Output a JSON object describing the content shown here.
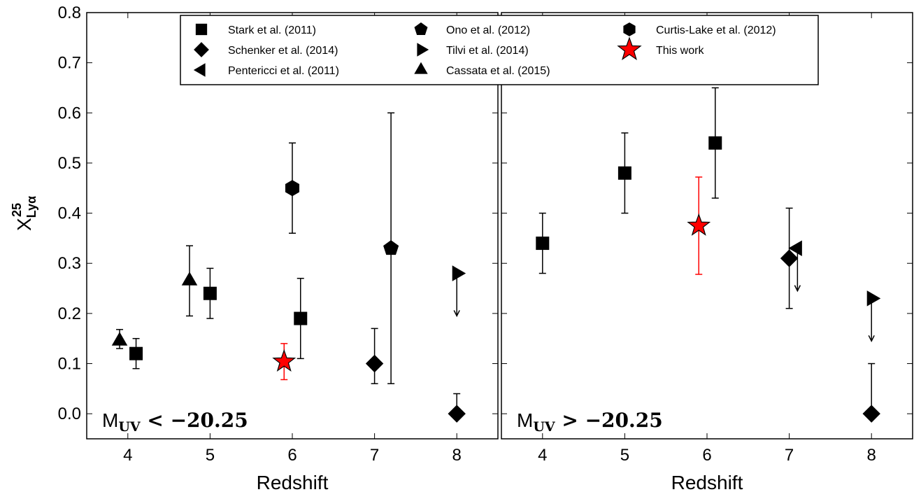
{
  "chart_data": {
    "type": "scatter",
    "ylabel": "X²⁵ Lyα",
    "ylabel_base": "X",
    "ylabel_sup": "25",
    "ylabel_sub": "Lyα",
    "ylim": [
      -0.05,
      0.8
    ],
    "yticks": [
      "0.0",
      "0.1",
      "0.2",
      "0.3",
      "0.4",
      "0.5",
      "0.6",
      "0.7",
      "0.8"
    ],
    "ytick_values": [
      0.0,
      0.1,
      0.2,
      0.3,
      0.4,
      0.5,
      0.6,
      0.7,
      0.8
    ],
    "xlim": [
      3.5,
      8.5
    ],
    "xticks": [
      "4",
      "5",
      "6",
      "7",
      "8"
    ],
    "xtick_values": [
      4,
      5,
      6,
      7,
      8
    ],
    "legend": {
      "placement": "top",
      "entries": [
        {
          "label": "Stark et al. (2011)",
          "marker": "square",
          "color": "#000000"
        },
        {
          "label": "Schenker et al. (2014)",
          "marker": "diamond",
          "color": "#000000"
        },
        {
          "label": "Pentericci et al. (2011)",
          "marker": "triangle-left",
          "color": "#000000"
        },
        {
          "label": "Ono et al. (2012)",
          "marker": "pentagon",
          "color": "#000000"
        },
        {
          "label": "Tilvi et al. (2014)",
          "marker": "triangle-right",
          "color": "#000000"
        },
        {
          "label": "Cassata et al. (2015)",
          "marker": "triangle-up",
          "color": "#000000"
        },
        {
          "label": "Curtis-Lake et al. (2012)",
          "marker": "hexagon",
          "color": "#000000"
        },
        {
          "label": "This work",
          "marker": "star",
          "color": "#ff0000"
        }
      ]
    },
    "panels": [
      {
        "label_main": "M",
        "label_sub": "UV",
        "label_rest": " < −20.25",
        "xlabel": "Redshift",
        "points": [
          {
            "series": "Cassata et al. (2015)",
            "marker": "triangle-up",
            "color": "#000000",
            "x": 3.9,
            "y": 0.145,
            "lo": 0.13,
            "hi": 0.168
          },
          {
            "series": "Stark et al. (2011)",
            "marker": "square",
            "color": "#000000",
            "x": 4.1,
            "y": 0.12,
            "lo": 0.09,
            "hi": 0.15
          },
          {
            "series": "Cassata et al. (2015)",
            "marker": "triangle-up",
            "color": "#000000",
            "x": 4.75,
            "y": 0.265,
            "lo": 0.195,
            "hi": 0.335
          },
          {
            "series": "Stark et al. (2011)",
            "marker": "square",
            "color": "#000000",
            "x": 5.0,
            "y": 0.24,
            "lo": 0.19,
            "hi": 0.29
          },
          {
            "series": "This work",
            "marker": "star",
            "color": "#ff0000",
            "x": 5.9,
            "y": 0.104,
            "lo": 0.068,
            "hi": 0.14
          },
          {
            "series": "Curtis-Lake et al. (2012)",
            "marker": "hexagon",
            "color": "#000000",
            "x": 6.0,
            "y": 0.45,
            "lo": 0.36,
            "hi": 0.54
          },
          {
            "series": "Stark et al. (2011)",
            "marker": "square",
            "color": "#000000",
            "x": 6.1,
            "y": 0.19,
            "lo": 0.11,
            "hi": 0.27
          },
          {
            "series": "Schenker et al. (2014)",
            "marker": "diamond",
            "color": "#000000",
            "x": 7.0,
            "y": 0.1,
            "lo": 0.06,
            "hi": 0.17
          },
          {
            "series": "Ono et al. (2012)",
            "marker": "pentagon",
            "color": "#000000",
            "x": 7.2,
            "y": 0.33,
            "lo": 0.06,
            "hi": 0.6
          },
          {
            "series": "Tilvi et al. (2014)",
            "marker": "triangle-right",
            "color": "#000000",
            "x": 8.0,
            "y": 0.28,
            "upper_limit_to": 0.195
          },
          {
            "series": "Schenker et al. (2014)",
            "marker": "diamond",
            "color": "#000000",
            "x": 8.0,
            "y": 0.0,
            "lo": 0.0,
            "hi": 0.04
          }
        ]
      },
      {
        "label_main": "M",
        "label_sub": "UV",
        "label_rest": " > −20.25",
        "xlabel": "Redshift",
        "points": [
          {
            "series": "Stark et al. (2011)",
            "marker": "square",
            "color": "#000000",
            "x": 4.0,
            "y": 0.34,
            "lo": 0.28,
            "hi": 0.4
          },
          {
            "series": "Stark et al. (2011)",
            "marker": "square",
            "color": "#000000",
            "x": 5.0,
            "y": 0.48,
            "lo": 0.4,
            "hi": 0.56
          },
          {
            "series": "This work",
            "marker": "star",
            "color": "#ff0000",
            "x": 5.9,
            "y": 0.375,
            "lo": 0.278,
            "hi": 0.472
          },
          {
            "series": "Stark et al. (2011)",
            "marker": "square",
            "color": "#000000",
            "x": 6.1,
            "y": 0.54,
            "lo": 0.43,
            "hi": 0.65
          },
          {
            "series": "Schenker et al. (2014)",
            "marker": "diamond",
            "color": "#000000",
            "x": 7.0,
            "y": 0.31,
            "lo": 0.21,
            "hi": 0.41
          },
          {
            "series": "Pentericci et al. (2011)",
            "marker": "triangle-left",
            "color": "#000000",
            "x": 7.1,
            "y": 0.33,
            "upper_limit_to": 0.245
          },
          {
            "series": "Tilvi et al. (2014)",
            "marker": "triangle-right",
            "color": "#000000",
            "x": 8.0,
            "y": 0.23,
            "upper_limit_to": 0.145
          },
          {
            "series": "Schenker et al. (2014)",
            "marker": "diamond",
            "color": "#000000",
            "x": 8.0,
            "y": 0.0,
            "lo": 0.0,
            "hi": 0.1
          }
        ]
      }
    ]
  }
}
